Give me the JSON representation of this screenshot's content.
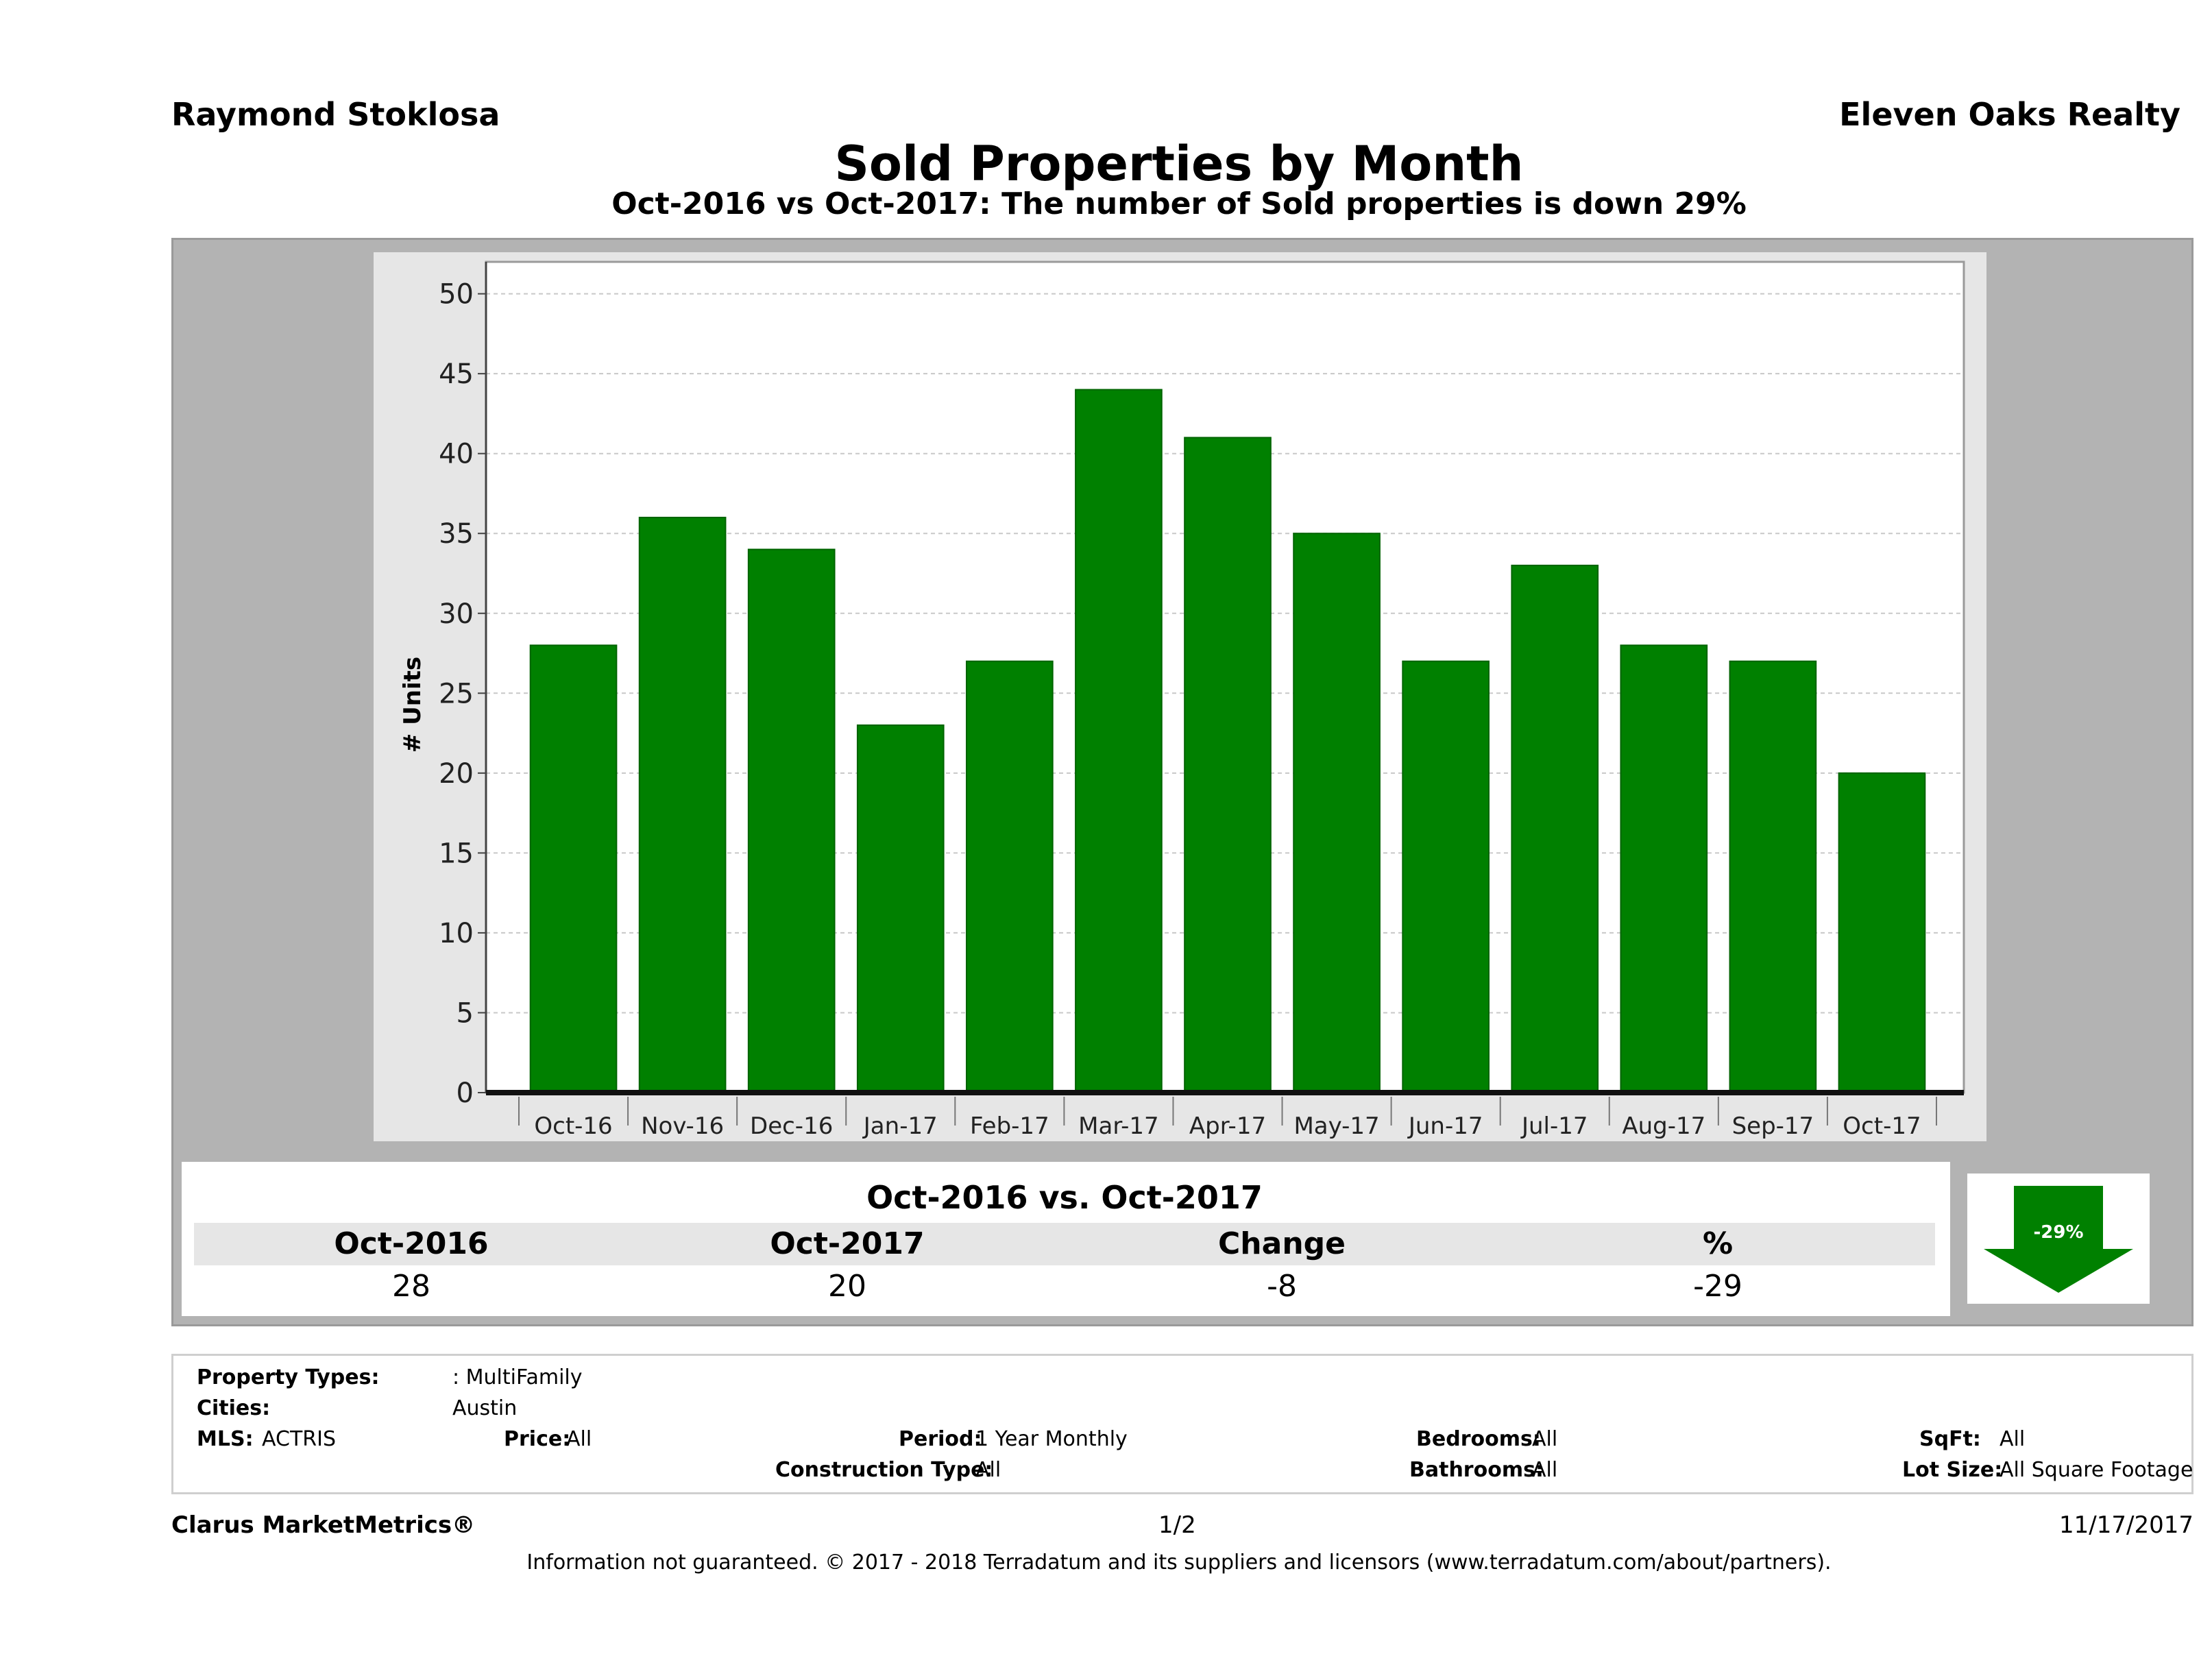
{
  "header": {
    "agent": "Raymond Stoklosa",
    "company": "Eleven Oaks Realty",
    "title": "Sold Properties by Month",
    "subtitle": "Oct-2016 vs Oct-2017: The number of Sold  properties is down 29%"
  },
  "chart_data": {
    "type": "bar",
    "categories": [
      "Oct-16",
      "Nov-16",
      "Dec-16",
      "Jan-17",
      "Feb-17",
      "Mar-17",
      "Apr-17",
      "May-17",
      "Jun-17",
      "Jul-17",
      "Aug-17",
      "Sep-17",
      "Oct-17"
    ],
    "values": [
      28,
      36,
      34,
      23,
      27,
      44,
      41,
      35,
      27,
      33,
      28,
      27,
      20
    ],
    "ylabel": "# Units",
    "xlabel": "",
    "ylim": [
      0,
      52
    ],
    "yticks": [
      0,
      5,
      10,
      15,
      20,
      25,
      30,
      35,
      40,
      45,
      50
    ],
    "grid": true,
    "bar_color": "#008000"
  },
  "summary": {
    "heading": "Oct-2016 vs. Oct-2017",
    "col1_label": "Oct-2016",
    "col2_label": "Oct-2017",
    "col3_label": "Change",
    "col4_label": "%",
    "col1_value": "28",
    "col2_value": "20",
    "col3_value": "-8",
    "col4_value": "-29",
    "arrow_label": "-29%",
    "arrow_icon": "down-arrow-icon",
    "arrow_color": "#008000"
  },
  "criteria": {
    "property_types_label": "Property Types:",
    "property_types_value": ": MultiFamily",
    "cities_label": "Cities:",
    "cities_value": "Austin",
    "mls_label": "MLS:",
    "mls_value": "ACTRIS",
    "price_label": "Price:",
    "price_value": "All",
    "period_label": "Period:",
    "period_value": "1 Year Monthly",
    "construction_label": "Construction Type:",
    "construction_value": "All",
    "bedrooms_label": "Bedrooms:",
    "bedrooms_value": "All",
    "bathrooms_label": "Bathrooms:",
    "bathrooms_value": "All",
    "sqft_label": "SqFt:",
    "sqft_value": "All",
    "lotsize_label": "Lot Size:",
    "lotsize_value": "All Square Footage"
  },
  "footer": {
    "brand": "Clarus MarketMetrics®",
    "page": "1/2",
    "date": "11/17/2017",
    "note": "Information not guaranteed. © 2017 - 2018 Terradatum and its suppliers and licensors (www.terradatum.com/about/partners)."
  }
}
